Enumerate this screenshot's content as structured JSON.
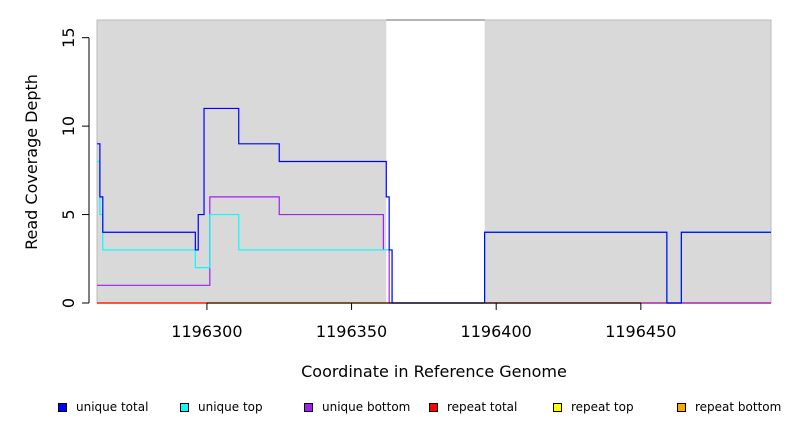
{
  "chart_data": {
    "type": "line",
    "title": "",
    "xlabel": "Coordinate in Reference Genome",
    "ylabel": "Read Coverage Depth",
    "xlim": [
      1196262,
      1196495
    ],
    "ylim": [
      0,
      16
    ],
    "x_ticks": [
      1196300,
      1196350,
      1196400,
      1196450
    ],
    "y_ticks": [
      0,
      5,
      10,
      15
    ],
    "grid": false,
    "background": "#d9d9d9",
    "gap_region": [
      1196362,
      1196396
    ],
    "step_lines": true,
    "series": [
      {
        "name": "unique total",
        "color": "#0000ff",
        "x": [
          1196262,
          1196263,
          1196264,
          1196296,
          1196297,
          1196299,
          1196301,
          1196311,
          1196325,
          1196362,
          1196363,
          1196364,
          1196396,
          1196459,
          1196464,
          1196495
        ],
        "y": [
          9,
          6,
          4,
          3,
          5,
          11,
          11,
          9,
          8,
          6,
          3,
          0,
          4,
          0,
          4,
          4
        ]
      },
      {
        "name": "unique top",
        "color": "#00ffff",
        "x": [
          1196262,
          1196263,
          1196264,
          1196296,
          1196301,
          1196311,
          1196362,
          1196364,
          1196396,
          1196459,
          1196464,
          1196495
        ],
        "y": [
          8,
          5,
          3,
          2,
          5,
          3,
          3,
          0,
          4,
          0,
          4,
          4
        ]
      },
      {
        "name": "unique bottom",
        "color": "#a020f0",
        "x": [
          1196262,
          1196298,
          1196301,
          1196325,
          1196361,
          1196363,
          1196495
        ],
        "y": [
          1,
          1,
          6,
          5,
          3,
          0,
          0
        ]
      },
      {
        "name": "repeat total",
        "color": "#ff0000",
        "x": [
          1196262,
          1196495
        ],
        "y": [
          0,
          0
        ]
      },
      {
        "name": "repeat top",
        "color": "#ffff00",
        "x": [
          1196262,
          1196495
        ],
        "y": [
          0,
          0
        ]
      },
      {
        "name": "repeat bottom",
        "color": "#ffa500",
        "x": [
          1196262,
          1196495
        ],
        "y": [
          0,
          0
        ]
      }
    ],
    "legend_position": "bottom"
  }
}
